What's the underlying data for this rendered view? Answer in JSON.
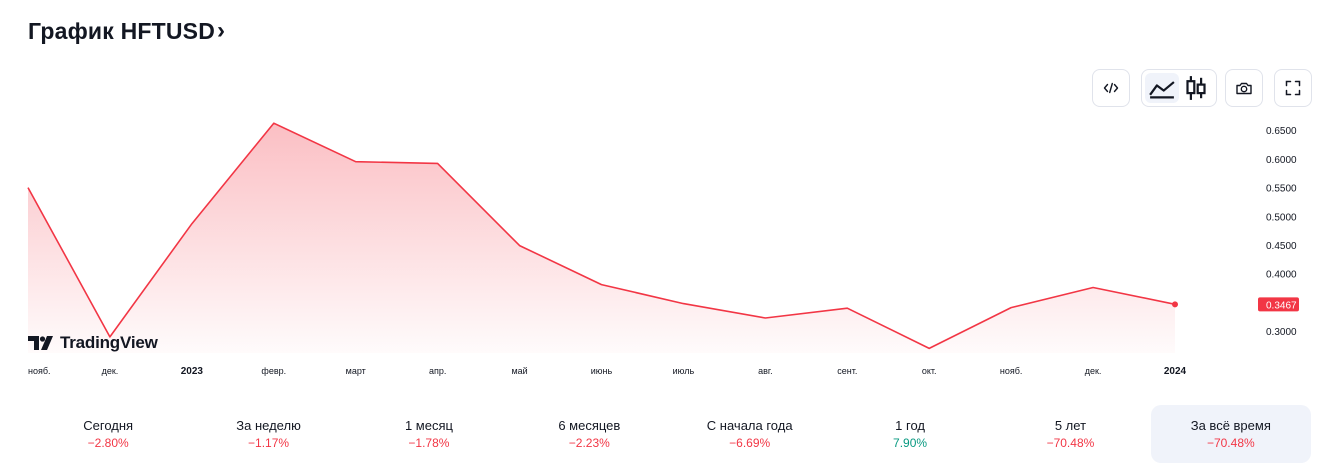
{
  "header": {
    "title": "График HFTUSD",
    "chevron": "›"
  },
  "toolbar": {
    "embed_icon": "code-icon",
    "area_icon": "area-chart-icon",
    "candles_icon": "candlestick-icon",
    "snapshot_icon": "camera-icon",
    "fullscreen_icon": "fullscreen-icon",
    "active_style": "area"
  },
  "logo": {
    "text": "TradingView"
  },
  "chart_data": {
    "type": "area",
    "x": [
      "нояб.",
      "дек.",
      "2023",
      "февр.",
      "март",
      "апр.",
      "май",
      "июнь",
      "июль",
      "авг.",
      "сент.",
      "окт.",
      "нояб.",
      "дек.",
      "2024"
    ],
    "x_bold": [
      "2023",
      "2024"
    ],
    "series": [
      {
        "points": [
          {
            "x": "2022-11-01",
            "y": 0.55
          },
          {
            "x": "2022-12-01",
            "y": 0.29
          },
          {
            "x": "2023-01-01",
            "y": 0.487
          },
          {
            "x": "2023-02-01",
            "y": 0.662
          },
          {
            "x": "2023-03-01",
            "y": 0.595
          },
          {
            "x": "2023-04-01",
            "y": 0.592
          },
          {
            "x": "2023-05-01",
            "y": 0.449
          },
          {
            "x": "2023-06-01",
            "y": 0.381
          },
          {
            "x": "2023-07-01",
            "y": 0.348
          },
          {
            "x": "2023-08-01",
            "y": 0.323
          },
          {
            "x": "2023-09-01",
            "y": 0.34
          },
          {
            "x": "2023-10-01",
            "y": 0.27
          },
          {
            "x": "2023-11-01",
            "y": 0.341
          },
          {
            "x": "2023-12-01",
            "y": 0.376
          },
          {
            "x": "2024-01-01",
            "y": 0.3467
          }
        ]
      }
    ],
    "y_ticks": [
      "0.6500",
      "0.6000",
      "0.5500",
      "0.5000",
      "0.4500",
      "0.4000",
      "0.3000"
    ],
    "y_tick_values": [
      0.65,
      0.6,
      0.55,
      0.5,
      0.45,
      0.4,
      0.3
    ],
    "ylim": [
      0.262,
      0.685
    ],
    "last_value_label": "0.3467",
    "grid": false,
    "colors": {
      "line": "#f23645",
      "fill": "#f23645",
      "last_badge": "#f23645"
    }
  },
  "periods": [
    {
      "label": "Сегодня",
      "value": "−2.80%",
      "color": "#f23645"
    },
    {
      "label": "За неделю",
      "value": "−1.17%",
      "color": "#f23645"
    },
    {
      "label": "1 месяц",
      "value": "−1.78%",
      "color": "#f23645"
    },
    {
      "label": "6 месяцев",
      "value": "−2.23%",
      "color": "#f23645"
    },
    {
      "label": "С начала года",
      "value": "−6.69%",
      "color": "#f23645"
    },
    {
      "label": "1 год",
      "value": "7.90%",
      "color": "#089981"
    },
    {
      "label": "5 лет",
      "value": "−70.48%",
      "color": "#f23645"
    },
    {
      "label": "За всё время",
      "value": "−70.48%",
      "color": "#f23645",
      "active": true
    }
  ]
}
